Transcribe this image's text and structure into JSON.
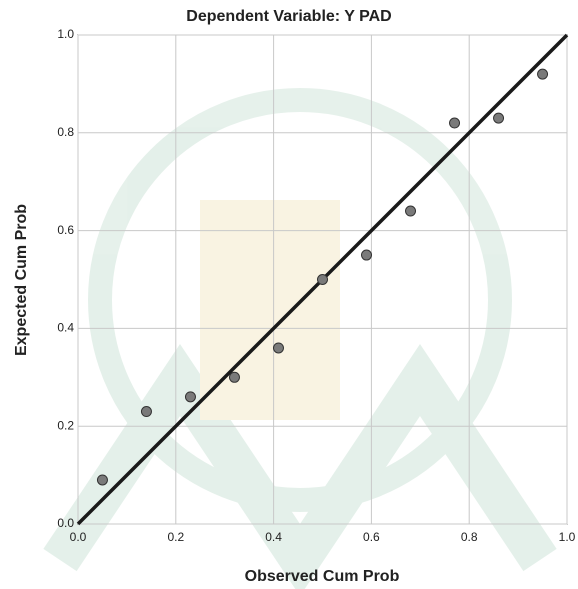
{
  "chart_data": {
    "type": "scatter",
    "title": "Dependent Variable: Y PAD",
    "x_label": "Observed Cum Prob",
    "y_label": "Expected Cum Prob",
    "x": [
      0.05,
      0.14,
      0.23,
      0.32,
      0.41,
      0.5,
      0.59,
      0.68,
      0.77,
      0.86,
      0.95
    ],
    "values": [
      0.09,
      0.23,
      0.26,
      0.3,
      0.36,
      0.5,
      0.55,
      0.64,
      0.82,
      0.83,
      0.92
    ],
    "color": "#7a7a7a",
    "xlim": [
      0,
      1
    ],
    "ylim": [
      0,
      1
    ],
    "xticks": [
      {
        "value": 0,
        "label": "0.0"
      },
      0.2,
      0.4,
      0.6,
      0.8,
      {
        "value": 1,
        "label": "1.0"
      }
    ],
    "yticks": [
      {
        "value": 0,
        "label": "0.0"
      },
      0.2,
      0.4,
      0.6,
      0.8,
      {
        "value": 1,
        "label": "1.0"
      }
    ],
    "grid": true
  }
}
